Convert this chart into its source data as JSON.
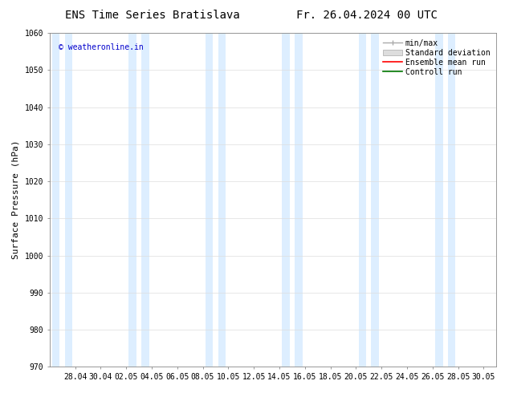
{
  "title_left": "ENS Time Series Bratislava",
  "title_right": "Fr. 26.04.2024 00 UTC",
  "ylabel": "Surface Pressure (hPa)",
  "ylim": [
    970,
    1060
  ],
  "yticks": [
    970,
    980,
    990,
    1000,
    1010,
    1020,
    1030,
    1040,
    1050,
    1060
  ],
  "x_tick_labels": [
    "28.04",
    "30.04",
    "02.05",
    "04.05",
    "06.05",
    "08.05",
    "10.05",
    "12.05",
    "14.05",
    "16.05",
    "18.05",
    "20.05",
    "22.05",
    "24.05",
    "26.05",
    "28.05",
    "30.05"
  ],
  "watermark": "© weatheronline.in",
  "watermark_color": "#0000cc",
  "background_color": "#ffffff",
  "band_color": "#ddeeff",
  "legend_items": [
    {
      "label": "min/max",
      "color": "#aaaaaa"
    },
    {
      "label": "Standard deviation",
      "color": "#cccccc"
    },
    {
      "label": "Ensemble mean run",
      "color": "#ff0000"
    },
    {
      "label": "Controll run",
      "color": "#007700"
    }
  ],
  "title_fontsize": 10,
  "label_fontsize": 8,
  "tick_fontsize": 7,
  "legend_fontsize": 7,
  "watermark_fontsize": 7
}
